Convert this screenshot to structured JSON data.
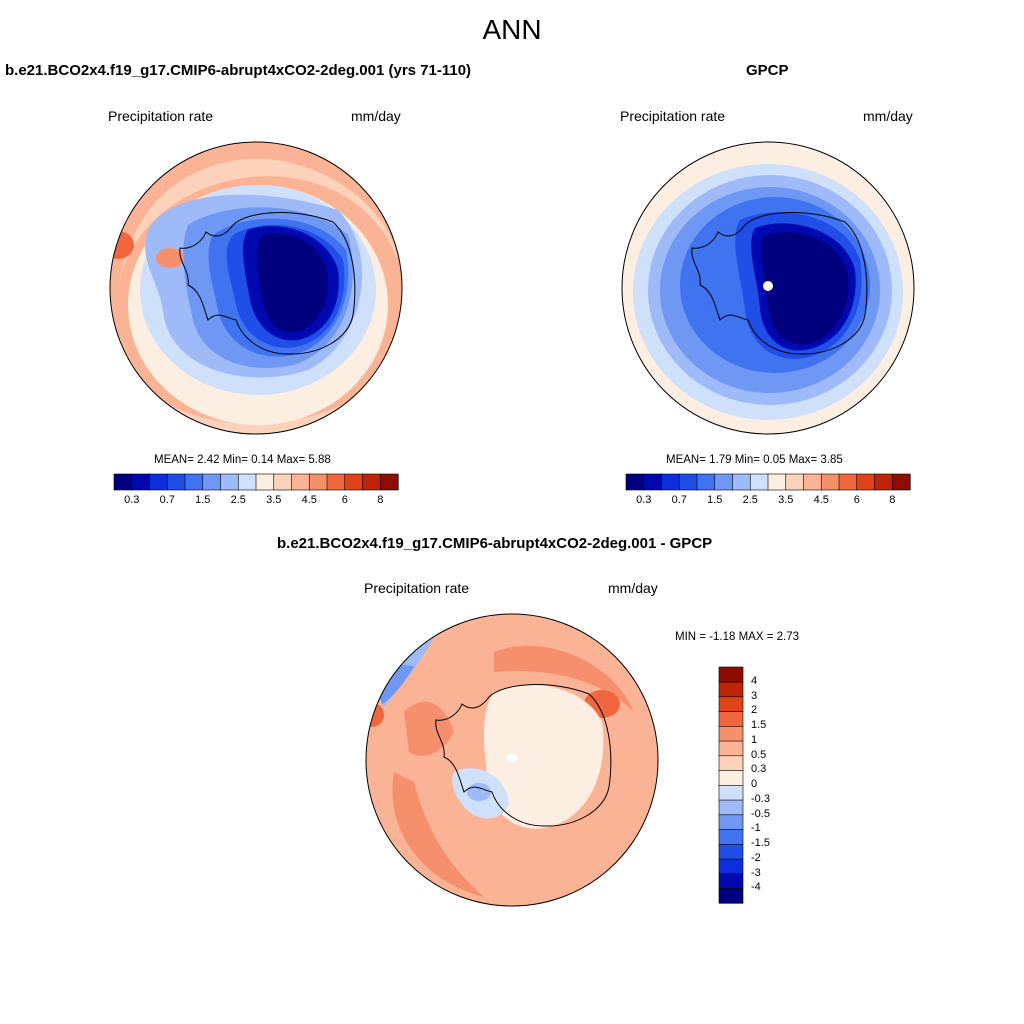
{
  "figure": {
    "title": "ANN"
  },
  "panels": [
    {
      "title": "b.e21.BCO2x4.f19_g17.CMIP6-abrupt4xCO2-2deg.001 (yrs 71-110)",
      "variable": "Precipitation rate",
      "units": "mm/day",
      "stats": "MEAN=   2.42  Min=   0.14  Max=   5.88"
    },
    {
      "title": "GPCP",
      "variable": "Precipitation rate",
      "units": "mm/day",
      "stats": "MEAN=   1.79  Min=   0.05  Max=   3.85"
    },
    {
      "title": "b.e21.BCO2x4.f19_g17.CMIP6-abrupt4xCO2-2deg.001 - GPCP",
      "variable": "Precipitation rate",
      "units": "mm/day",
      "stats": "MIN =  -1.18 MAX =   2.73"
    }
  ],
  "chart_data": [
    {
      "type": "heatmap",
      "projection": "south-polar-stereographic",
      "title": "b.e21.BCO2x4.f19_g17.CMIP6-abrupt4xCO2-2deg.001 (yrs 71-110)",
      "subtitle": "Precipitation rate",
      "units": "mm/day",
      "mean": 2.42,
      "min": 0.14,
      "max": 5.88,
      "colorbar": {
        "orientation": "horizontal",
        "colors": [
          "#00007f",
          "#0009b0",
          "#0d2edc",
          "#1f4ee8",
          "#3f73f0",
          "#6f97f4",
          "#9fbaf8",
          "#cfe0fb",
          "#fdeee2",
          "#fdd2bb",
          "#fbb395",
          "#f6906c",
          "#f0673f",
          "#de4418",
          "#bf2408",
          "#8f0c00"
        ],
        "tick_labels": [
          "0.3",
          "0.7",
          "1.5",
          "2.5",
          "3.5",
          "4.5",
          "6",
          "8"
        ]
      }
    },
    {
      "type": "heatmap",
      "projection": "south-polar-stereographic",
      "title": "GPCP",
      "subtitle": "Precipitation rate",
      "units": "mm/day",
      "mean": 1.79,
      "min": 0.05,
      "max": 3.85,
      "colorbar": {
        "orientation": "horizontal",
        "colors": [
          "#00007f",
          "#0009b0",
          "#0d2edc",
          "#1f4ee8",
          "#3f73f0",
          "#6f97f4",
          "#9fbaf8",
          "#cfe0fb",
          "#fdeee2",
          "#fdd2bb",
          "#fbb395",
          "#f6906c",
          "#f0673f",
          "#de4418",
          "#bf2408",
          "#8f0c00"
        ],
        "tick_labels": [
          "0.3",
          "0.7",
          "1.5",
          "2.5",
          "3.5",
          "4.5",
          "6",
          "8"
        ]
      }
    },
    {
      "type": "heatmap",
      "projection": "south-polar-stereographic",
      "title": "b.e21.BCO2x4.f19_g17.CMIP6-abrupt4xCO2-2deg.001 - GPCP",
      "subtitle": "Precipitation rate",
      "units": "mm/day",
      "min": -1.18,
      "max": 2.73,
      "colorbar": {
        "orientation": "vertical",
        "colors": [
          "#00007f",
          "#0009b0",
          "#0d2edc",
          "#1f4ee8",
          "#3f73f0",
          "#6f97f4",
          "#9fbaf8",
          "#cfe0fb",
          "#fdeee2",
          "#fdd2bb",
          "#fbb395",
          "#f6906c",
          "#f0673f",
          "#de4418",
          "#bf2408",
          "#8f0c00"
        ],
        "tick_labels": [
          "-4",
          "-3",
          "-2",
          "-1.5",
          "-1",
          "-0.5",
          "-0.3",
          "0",
          "0.3",
          "0.5",
          "1",
          "1.5",
          "2",
          "3",
          "4"
        ]
      }
    }
  ]
}
